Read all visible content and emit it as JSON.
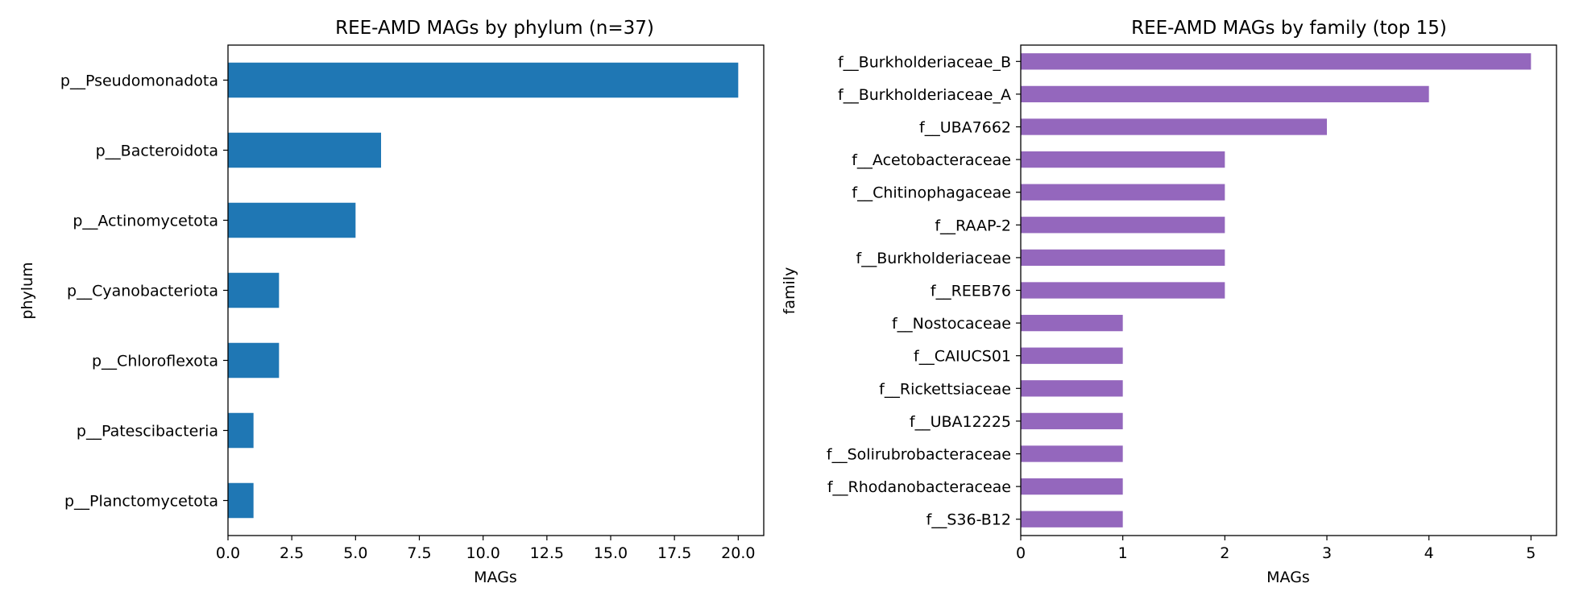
{
  "chart_data": [
    {
      "type": "bar",
      "orientation": "horizontal",
      "title": "REE-AMD MAGs by phylum (n=37)",
      "xlabel": "MAGs",
      "ylabel": "phylum",
      "categories": [
        "p__Pseudomonadota",
        "p__Bacteroidota",
        "p__Actinomycetota",
        "p__Cyanobacteriota",
        "p__Chloroflexota",
        "p__Patescibacteria",
        "p__Planctomycetota"
      ],
      "values": [
        20,
        6,
        5,
        2,
        2,
        1,
        1
      ],
      "xlim": [
        0,
        21
      ],
      "xticks": [
        0,
        2.5,
        5,
        7.5,
        10,
        12.5,
        15,
        17.5,
        20
      ],
      "xtick_labels": [
        "0.0",
        "2.5",
        "5.0",
        "7.5",
        "10.0",
        "12.5",
        "15.0",
        "17.5",
        "20.0"
      ],
      "grid": false,
      "color": "#1f77b4"
    },
    {
      "type": "bar",
      "orientation": "horizontal",
      "title": "REE-AMD MAGs by family (top 15)",
      "xlabel": "MAGs",
      "ylabel": "family",
      "categories": [
        "f__Burkholderiaceae_B",
        "f__Burkholderiaceae_A",
        "f__UBA7662",
        "f__Acetobacteraceae",
        "f__Chitinophagaceae",
        "f__RAAP-2",
        "f__Burkholderiaceae",
        "f__REEB76",
        "f__Nostocaceae",
        "f__CAIUCS01",
        "f__Rickettsiaceae",
        "f__UBA12225",
        "f__Solirubrobacteraceae",
        "f__Rhodanobacteraceae",
        "f__S36-B12"
      ],
      "values": [
        5,
        4,
        3,
        2,
        2,
        2,
        2,
        2,
        1,
        1,
        1,
        1,
        1,
        1,
        1
      ],
      "xlim": [
        0,
        5.25
      ],
      "xticks": [
        0,
        1,
        2,
        3,
        4,
        5
      ],
      "xtick_labels": [
        "0",
        "1",
        "2",
        "3",
        "4",
        "5"
      ],
      "grid": false,
      "color": "#9467bd"
    }
  ]
}
